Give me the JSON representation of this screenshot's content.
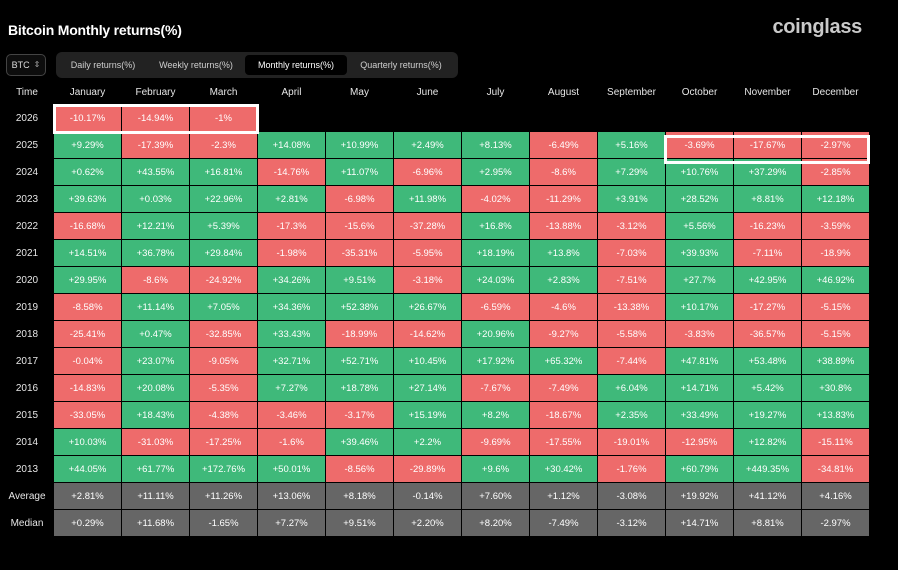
{
  "title": "Bitcoin Monthly returns(%)",
  "brand": "coinglass",
  "asset": {
    "selected": "BTC"
  },
  "tabs": [
    {
      "label": "Daily returns(%)",
      "active": false
    },
    {
      "label": "Weekly returns(%)",
      "active": false
    },
    {
      "label": "Monthly returns(%)",
      "active": true
    },
    {
      "label": "Quarterly returns(%)",
      "active": false
    }
  ],
  "header": {
    "time": "Time",
    "months": [
      "January",
      "February",
      "March",
      "April",
      "May",
      "June",
      "July",
      "August",
      "September",
      "October",
      "November",
      "December"
    ]
  },
  "rows": [
    {
      "label": "2026",
      "values": [
        "-10.17%",
        "-14.94%",
        "-1%",
        "",
        "",
        "",
        "",
        "",
        "",
        "",
        "",
        ""
      ]
    },
    {
      "label": "2025",
      "values": [
        "+9.29%",
        "-17.39%",
        "-2.3%",
        "+14.08%",
        "+10.99%",
        "+2.49%",
        "+8.13%",
        "-6.49%",
        "+5.16%",
        "-3.69%",
        "-17.67%",
        "-2.97%"
      ]
    },
    {
      "label": "2024",
      "values": [
        "+0.62%",
        "+43.55%",
        "+16.81%",
        "-14.76%",
        "+11.07%",
        "-6.96%",
        "+2.95%",
        "-8.6%",
        "+7.29%",
        "+10.76%",
        "+37.29%",
        "-2.85%"
      ]
    },
    {
      "label": "2023",
      "values": [
        "+39.63%",
        "+0.03%",
        "+22.96%",
        "+2.81%",
        "-6.98%",
        "+11.98%",
        "-4.02%",
        "-11.29%",
        "+3.91%",
        "+28.52%",
        "+8.81%",
        "+12.18%"
      ]
    },
    {
      "label": "2022",
      "values": [
        "-16.68%",
        "+12.21%",
        "+5.39%",
        "-17.3%",
        "-15.6%",
        "-37.28%",
        "+16.8%",
        "-13.88%",
        "-3.12%",
        "+5.56%",
        "-16.23%",
        "-3.59%"
      ]
    },
    {
      "label": "2021",
      "values": [
        "+14.51%",
        "+36.78%",
        "+29.84%",
        "-1.98%",
        "-35.31%",
        "-5.95%",
        "+18.19%",
        "+13.8%",
        "-7.03%",
        "+39.93%",
        "-7.11%",
        "-18.9%"
      ]
    },
    {
      "label": "2020",
      "values": [
        "+29.95%",
        "-8.6%",
        "-24.92%",
        "+34.26%",
        "+9.51%",
        "-3.18%",
        "+24.03%",
        "+2.83%",
        "-7.51%",
        "+27.7%",
        "+42.95%",
        "+46.92%"
      ]
    },
    {
      "label": "2019",
      "values": [
        "-8.58%",
        "+11.14%",
        "+7.05%",
        "+34.36%",
        "+52.38%",
        "+26.67%",
        "-6.59%",
        "-4.6%",
        "-13.38%",
        "+10.17%",
        "-17.27%",
        "-5.15%"
      ]
    },
    {
      "label": "2018",
      "values": [
        "-25.41%",
        "+0.47%",
        "-32.85%",
        "+33.43%",
        "-18.99%",
        "-14.62%",
        "+20.96%",
        "-9.27%",
        "-5.58%",
        "-3.83%",
        "-36.57%",
        "-5.15%"
      ]
    },
    {
      "label": "2017",
      "values": [
        "-0.04%",
        "+23.07%",
        "-9.05%",
        "+32.71%",
        "+52.71%",
        "+10.45%",
        "+17.92%",
        "+65.32%",
        "-7.44%",
        "+47.81%",
        "+53.48%",
        "+38.89%"
      ]
    },
    {
      "label": "2016",
      "values": [
        "-14.83%",
        "+20.08%",
        "-5.35%",
        "+7.27%",
        "+18.78%",
        "+27.14%",
        "-7.67%",
        "-7.49%",
        "+6.04%",
        "+14.71%",
        "+5.42%",
        "+30.8%"
      ]
    },
    {
      "label": "2015",
      "values": [
        "-33.05%",
        "+18.43%",
        "-4.38%",
        "-3.46%",
        "-3.17%",
        "+15.19%",
        "+8.2%",
        "-18.67%",
        "+2.35%",
        "+33.49%",
        "+19.27%",
        "+13.83%"
      ]
    },
    {
      "label": "2014",
      "values": [
        "+10.03%",
        "-31.03%",
        "-17.25%",
        "-1.6%",
        "+39.46%",
        "+2.2%",
        "-9.69%",
        "-17.55%",
        "-19.01%",
        "-12.95%",
        "+12.82%",
        "-15.11%"
      ]
    },
    {
      "label": "2013",
      "values": [
        "+44.05%",
        "+61.77%",
        "+172.76%",
        "+50.01%",
        "-8.56%",
        "-29.89%",
        "+9.6%",
        "+30.42%",
        "-1.76%",
        "+60.79%",
        "+449.35%",
        "-34.81%"
      ]
    }
  ],
  "stats": [
    {
      "label": "Average",
      "values": [
        "+2.81%",
        "+11.11%",
        "+11.26%",
        "+13.06%",
        "+8.18%",
        "-0.14%",
        "+7.60%",
        "+1.12%",
        "-3.08%",
        "+19.92%",
        "+41.12%",
        "+4.16%"
      ]
    },
    {
      "label": "Median",
      "values": [
        "+0.29%",
        "+11.68%",
        "-1.65%",
        "+7.27%",
        "+9.51%",
        "+2.20%",
        "+8.20%",
        "-7.49%",
        "-3.12%",
        "+14.71%",
        "+8.81%",
        "-2.97%"
      ]
    }
  ],
  "colors": {
    "positive": "#3fb97a",
    "negative": "#ee6b6b",
    "stat": "#666666",
    "background": "#000000"
  }
}
